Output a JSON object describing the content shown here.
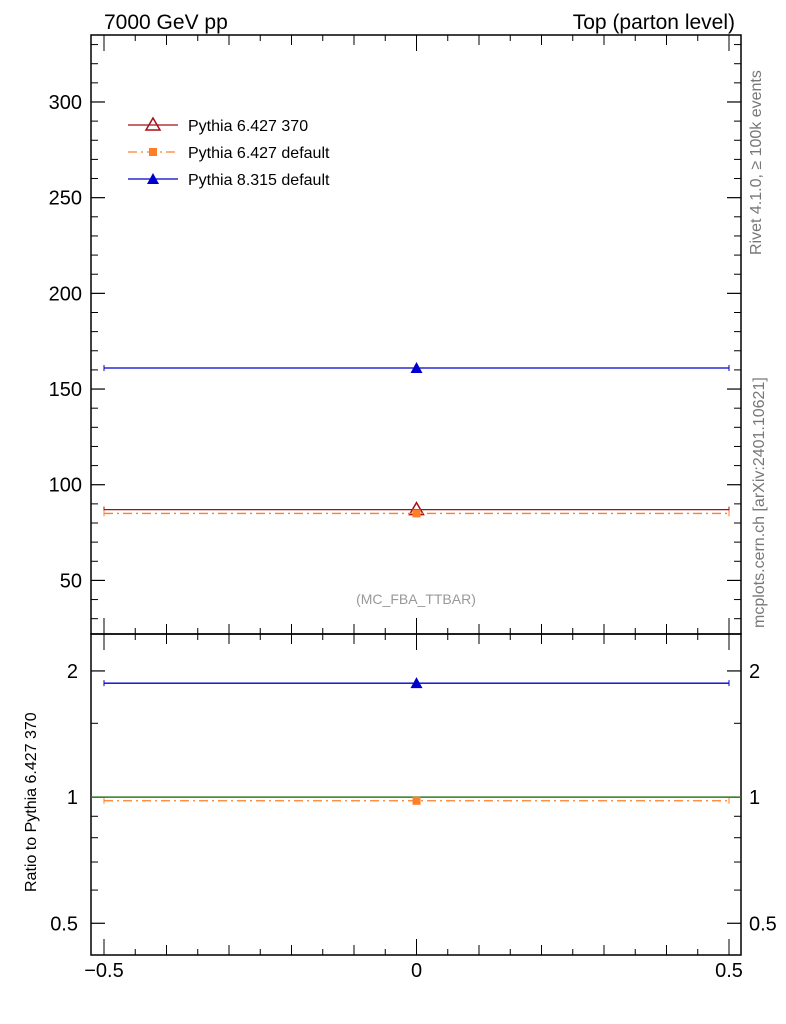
{
  "header": {
    "left_title": "7000 GeV pp",
    "right_title": "Top (parton level)"
  },
  "side_labels": {
    "rivet": "Rivet 4.1.0, ≥ 100k events",
    "mcplots": "mcplots.cern.ch [arXiv:2401.10621]"
  },
  "analysis_label": "(MC_FBA_TTBAR)",
  "chart_data": [
    {
      "type": "line",
      "panel": "main",
      "xlim": [
        -0.5,
        0.5
      ],
      "ylim": [
        22,
        335
      ],
      "ylabel": "",
      "yticks": [
        50,
        100,
        150,
        200,
        250,
        300
      ],
      "xticks": [
        -0.5,
        0,
        0.5
      ],
      "legend_position": "top-left",
      "series": [
        {
          "name": "Pythia 6.427 370",
          "color": "#a50f15",
          "marker": "open-triangle",
          "line": "solid",
          "x": [
            0
          ],
          "y": [
            87
          ],
          "xerr": [
            0.5
          ]
        },
        {
          "name": "Pythia 6.427 default",
          "color": "#ff7f27",
          "marker": "square",
          "line": "dashdot",
          "x": [
            0
          ],
          "y": [
            85
          ],
          "xerr": [
            0.5
          ]
        },
        {
          "name": "Pythia 8.315 default",
          "color": "#0000cc",
          "marker": "filled-triangle",
          "line": "solid",
          "x": [
            0
          ],
          "y": [
            161
          ],
          "xerr": [
            0.5
          ]
        }
      ]
    },
    {
      "type": "line",
      "panel": "ratio",
      "xlim": [
        -0.5,
        0.5
      ],
      "ylim": [
        0.42,
        2.45
      ],
      "ylabel": "Ratio to Pythia 6.427 370",
      "yticks": [
        0.5,
        1,
        2
      ],
      "ytick_labels": [
        "0.5",
        "1",
        "2"
      ],
      "xticks": [
        -0.5,
        0,
        0.5
      ],
      "xtick_labels": [
        "−0.5",
        "0",
        "0.5"
      ],
      "reference_line": {
        "y": 1,
        "color": "#2e7d1e"
      },
      "series": [
        {
          "name": "Pythia 6.427 default",
          "color": "#ff7f27",
          "marker": "square",
          "line": "dashdot",
          "x": [
            0
          ],
          "y": [
            0.98
          ],
          "xerr": [
            0.5
          ]
        },
        {
          "name": "Pythia 8.315 default",
          "color": "#0000cc",
          "marker": "filled-triangle",
          "line": "solid",
          "x": [
            0
          ],
          "y": [
            1.87
          ],
          "xerr": [
            0.5
          ]
        }
      ]
    }
  ]
}
